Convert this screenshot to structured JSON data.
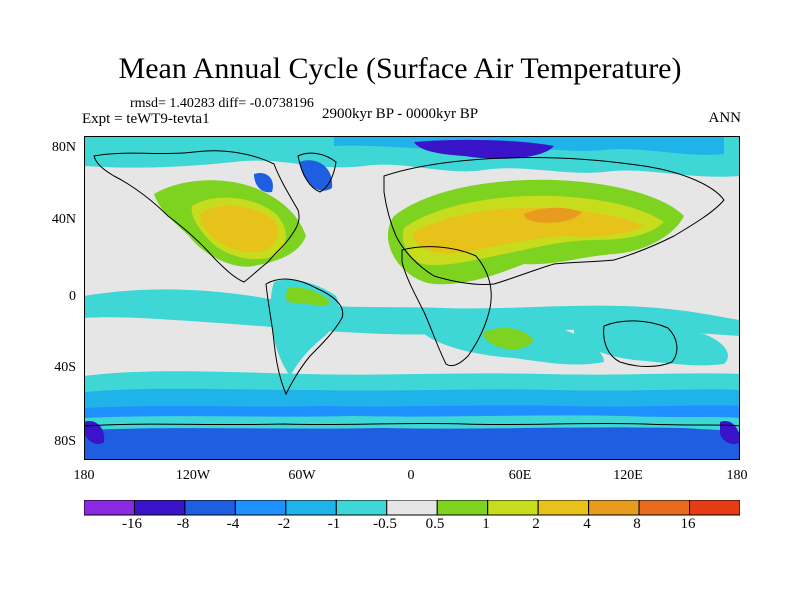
{
  "figure": {
    "title": "Mean Annual Cycle (Surface Air Temperature)",
    "stats": "rmsd= 1.40283  diff= -0.0738196",
    "experiment": "Expt = teWT9-tevta1",
    "period": "2900kyr BP - 0000kyr BP",
    "season": "ANN"
  },
  "axes": {
    "lat_labels": [
      "80N",
      "40N",
      "0",
      "40S",
      "80S"
    ],
    "lon_labels": [
      "180",
      "120W",
      "60W",
      "0",
      "60E",
      "120E",
      "180"
    ]
  },
  "colorbar": {
    "colors": [
      "#8a2be2",
      "#3a14c8",
      "#1d5fe0",
      "#1e90ff",
      "#1fb3ea",
      "#3fd6d6",
      "#e6e6e6",
      "#7ed321",
      "#c8dc1e",
      "#e6c21a",
      "#e89b1e",
      "#e96c1e",
      "#e63c14"
    ],
    "labels": [
      "-16",
      "-8",
      "-4",
      "-2",
      "-1",
      "-0.5",
      "0.5",
      "1",
      "2",
      "4",
      "8",
      "16"
    ]
  },
  "palette": {
    "neutral": "#e6e6e6",
    "light_cyan": "#3fd6d6",
    "cyan": "#1fb3ea",
    "blue": "#1e90ff",
    "dark_blue": "#1d5fe0",
    "navy": "#3a14c8",
    "green": "#7ed321",
    "yellow": "#c8dc1e",
    "gold": "#e6c21a",
    "orange": "#e89b1e",
    "coast": "#000000"
  }
}
